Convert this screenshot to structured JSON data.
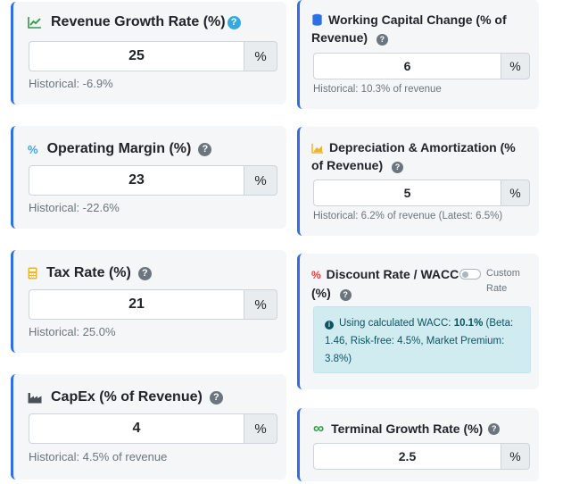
{
  "left_cards": [
    {
      "title": "Revenue Growth Rate (%)",
      "icon": "line-chart-icon",
      "value": "25",
      "unit": "%",
      "historical": "Historical: -6.9%"
    },
    {
      "title": "Operating Margin (%)",
      "icon": "percent-icon",
      "value": "23",
      "unit": "%",
      "historical": "Historical: -22.6%"
    },
    {
      "title": "Tax Rate (%)",
      "icon": "calculator-icon",
      "value": "21",
      "unit": "%",
      "historical": "Historical: 25.0%"
    },
    {
      "title": "CapEx (% of Revenue)",
      "icon": "industry-icon",
      "value": "4",
      "unit": "%",
      "historical": "Historical: 4.5% of revenue"
    }
  ],
  "right_cards": {
    "working_capital": {
      "title_line1": "Working Capital Change (% of",
      "title_line2": "Revenue)",
      "icon": "coins-icon",
      "value": "6",
      "unit": "%",
      "historical": "Historical: 10.3% of revenue"
    },
    "depreciation": {
      "title_line1": "Depreciation & Amortization (%",
      "title_line2": "of Revenue)",
      "icon": "area-chart-icon",
      "value": "5",
      "unit": "%",
      "historical": "Historical: 6.2% of revenue (Latest: 6.5%)"
    },
    "discount_rate": {
      "title_line1": "Discount Rate / WACC",
      "title_line2": "(%)",
      "icon": "percent-icon",
      "toggle_label_1": "Custom",
      "toggle_label_2": "Rate",
      "toggle_on": false,
      "info_prefix": "Using calculated WACC: ",
      "info_value": "10.1%",
      "info_line1_rest": " (Beta:",
      "info_line2": "1.46, Risk-free: 4.5%, Market Premium:",
      "info_line3": "3.8%)"
    },
    "terminal_growth": {
      "title": "Terminal Growth Rate (%)",
      "icon": "infinity-icon",
      "value": "2.5",
      "unit": "%"
    }
  },
  "colors": {
    "accent_border": "#2f6fe4",
    "card_bg": "#f4f6f8",
    "info_bg": "#d1ecf1",
    "info_text": "#0c5460"
  }
}
